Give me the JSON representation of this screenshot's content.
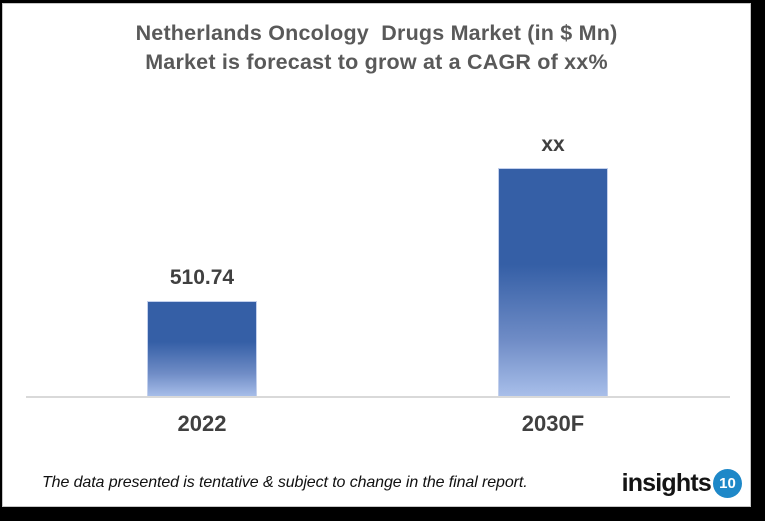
{
  "frame": {
    "background_color": "#000000",
    "card_color": "#FFFFFF",
    "card_border_color": "#C6C6C6"
  },
  "chart_data": {
    "type": "bar",
    "title": "Netherlands Oncology  Drugs Market (in $ Mn)",
    "subtitle": "Market is forecast to grow at a CAGR of xx%",
    "categories": [
      "2022",
      "2030F"
    ],
    "values": [
      510.74,
      null
    ],
    "value_labels": [
      "510.74",
      "xx"
    ],
    "xlabel": "",
    "ylabel": "",
    "legend": false,
    "gridlines": false,
    "axis_line_color": "#D9D9D9",
    "title_color": "#595959",
    "label_color": "#404040",
    "bar_gradient_top": "#355FA6",
    "bar_gradient_bottom": "#A9BFEA"
  },
  "footer": {
    "disclaimer": "The data presented is tentative & subject to change in the final report.",
    "logo_text": "insights",
    "logo_badge": "10",
    "logo_badge_color": "#1E88C8"
  }
}
